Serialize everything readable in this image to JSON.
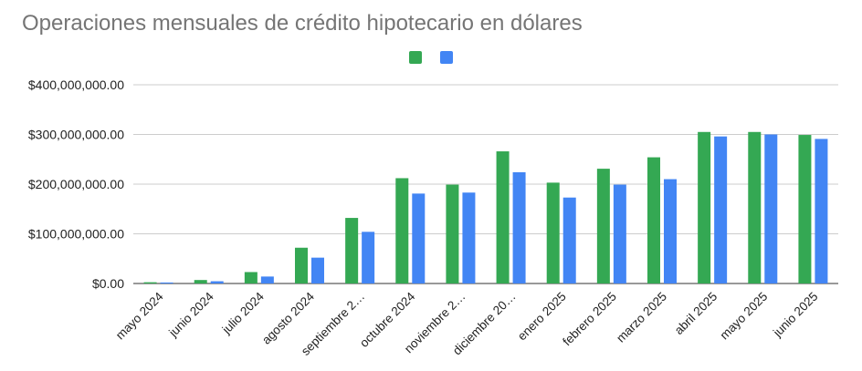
{
  "chart_data": {
    "type": "bar",
    "title": "Operaciones mensuales de crédito hipotecario en dólares",
    "xlabel": "",
    "ylabel": "",
    "ylim": [
      0,
      400000000
    ],
    "yticks": [
      0,
      100000000,
      200000000,
      300000000,
      400000000
    ],
    "ytick_labels": [
      "$0.00",
      "$100,000,000.00",
      "$200,000,000.00",
      "$300,000,000.00",
      "$400,000,000.00"
    ],
    "grid": true,
    "legend": "top-center",
    "categories": [
      "mayo 2024",
      "junio 2024",
      "julio 2024",
      "agosto 2024",
      "septiembre 2…",
      "octubre 2024",
      "noviembre 2…",
      "diciembre 20…",
      "enero 2025",
      "febrero 2025",
      "marzo 2025",
      "abril 2025",
      "mayo 2025",
      "junio 2025"
    ],
    "series": [
      {
        "color": "#34a853",
        "values": [
          2500000,
          7000000,
          23000000,
          72000000,
          132000000,
          212000000,
          199000000,
          266000000,
          203000000,
          231000000,
          254000000,
          305000000,
          305000000,
          299000000
        ]
      },
      {
        "color": "#4285f4",
        "values": [
          2000000,
          4500000,
          14000000,
          52000000,
          104000000,
          181000000,
          183000000,
          224000000,
          173000000,
          199000000,
          210000000,
          296000000,
          300000000,
          291000000
        ]
      }
    ]
  }
}
